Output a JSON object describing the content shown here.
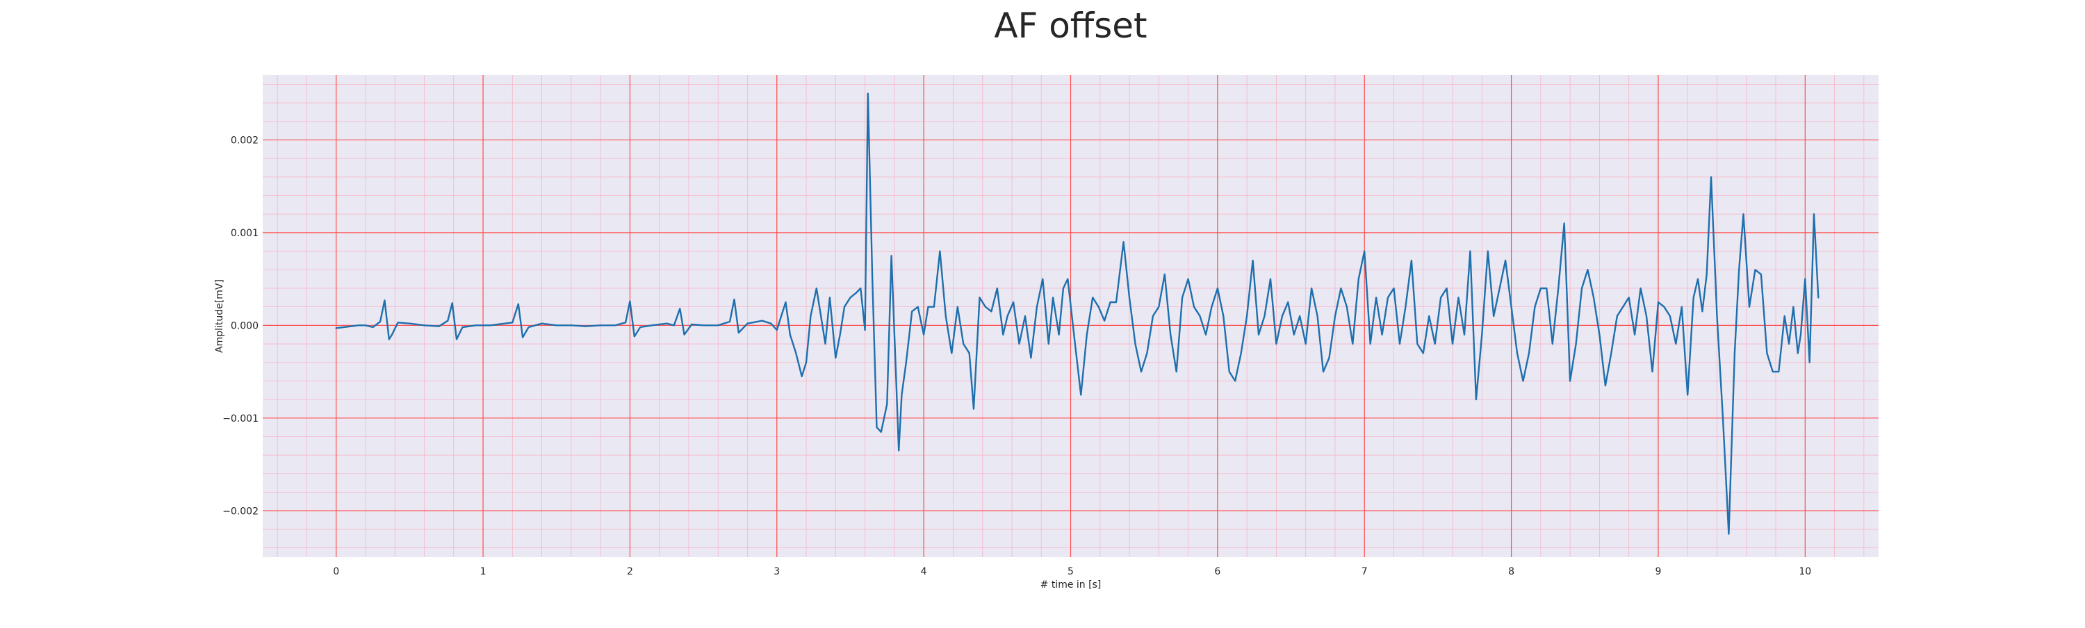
{
  "chart_data": {
    "type": "line",
    "title": "AF offset",
    "xlabel": "# time in [s]",
    "ylabel": "Amplitude[mV]",
    "xlim": [
      -0.5,
      10.5
    ],
    "ylim": [
      -0.0025,
      0.0027
    ],
    "x_ticks": [
      0,
      1,
      2,
      3,
      4,
      5,
      6,
      7,
      8,
      9,
      10
    ],
    "x_tick_labels": [
      "0",
      "1",
      "2",
      "3",
      "4",
      "5",
      "6",
      "7",
      "8",
      "9",
      "10"
    ],
    "y_ticks": [
      -0.002,
      -0.001,
      0.0,
      0.001,
      0.002
    ],
    "y_tick_labels": [
      "−0.002",
      "−0.001",
      "0.000",
      "0.001",
      "0.002"
    ],
    "grid": true,
    "grid_major_color": "#ff4d4d",
    "grid_minor_color": "#f7b6c8",
    "background_color": "#eae8f2",
    "series": [
      {
        "color": "#1f6fad",
        "points": [
          [
            0.0,
            -3e-05
          ],
          [
            0.05,
            -2e-05
          ],
          [
            0.1,
            -1e-05
          ],
          [
            0.15,
            0.0
          ],
          [
            0.2,
            0.0
          ],
          [
            0.25,
            -2e-05
          ],
          [
            0.3,
            4e-05
          ],
          [
            0.33,
            0.00027
          ],
          [
            0.36,
            -0.00015
          ],
          [
            0.38,
            -0.0001
          ],
          [
            0.42,
            3e-05
          ],
          [
            0.5,
            2e-05
          ],
          [
            0.6,
            0.0
          ],
          [
            0.7,
            -1e-05
          ],
          [
            0.76,
            5e-05
          ],
          [
            0.79,
            0.00024
          ],
          [
            0.82,
            -0.00015
          ],
          [
            0.86,
            -2e-05
          ],
          [
            0.95,
            0.0
          ],
          [
            1.05,
            0.0
          ],
          [
            1.1,
            1e-05
          ],
          [
            1.2,
            3e-05
          ],
          [
            1.24,
            0.00023
          ],
          [
            1.27,
            -0.00013
          ],
          [
            1.31,
            -2e-05
          ],
          [
            1.4,
            2e-05
          ],
          [
            1.5,
            0.0
          ],
          [
            1.6,
            0.0
          ],
          [
            1.7,
            -1e-05
          ],
          [
            1.8,
            0.0
          ],
          [
            1.9,
            0.0
          ],
          [
            1.97,
            3e-05
          ],
          [
            2.0,
            0.00026
          ],
          [
            2.03,
            -0.00012
          ],
          [
            2.07,
            -2e-05
          ],
          [
            2.15,
            0.0
          ],
          [
            2.25,
            2e-05
          ],
          [
            2.3,
            0.0
          ],
          [
            2.34,
            0.00018
          ],
          [
            2.37,
            -0.0001
          ],
          [
            2.42,
            1e-05
          ],
          [
            2.5,
            0.0
          ],
          [
            2.6,
            0.0
          ],
          [
            2.68,
            4e-05
          ],
          [
            2.71,
            0.00028
          ],
          [
            2.74,
            -8e-05
          ],
          [
            2.8,
            2e-05
          ],
          [
            2.9,
            5e-05
          ],
          [
            2.96,
            2e-05
          ],
          [
            3.0,
            -5e-05
          ],
          [
            3.03,
            0.0001
          ],
          [
            3.06,
            0.00025
          ],
          [
            3.09,
            -0.0001
          ],
          [
            3.13,
            -0.0003
          ],
          [
            3.17,
            -0.00055
          ],
          [
            3.2,
            -0.0004
          ],
          [
            3.23,
            0.0001
          ],
          [
            3.27,
            0.0004
          ],
          [
            3.3,
            0.0001
          ],
          [
            3.33,
            -0.0002
          ],
          [
            3.36,
            0.0003
          ],
          [
            3.4,
            -0.00035
          ],
          [
            3.43,
            -0.0001
          ],
          [
            3.46,
            0.0002
          ],
          [
            3.5,
            0.0003
          ],
          [
            3.54,
            0.00035
          ],
          [
            3.57,
            0.0004
          ],
          [
            3.6,
            -5e-05
          ],
          [
            3.62,
            0.0025
          ],
          [
            3.65,
            0.0005
          ],
          [
            3.68,
            -0.0011
          ],
          [
            3.71,
            -0.00115
          ],
          [
            3.75,
            -0.00085
          ],
          [
            3.78,
            0.00075
          ],
          [
            3.81,
            -0.0005
          ],
          [
            3.83,
            -0.00135
          ],
          [
            3.85,
            -0.00075
          ],
          [
            3.88,
            -0.0004
          ],
          [
            3.92,
            0.00015
          ],
          [
            3.96,
            0.0002
          ],
          [
            4.0,
            -0.0001
          ],
          [
            4.03,
            0.0002
          ],
          [
            4.07,
            0.0002
          ],
          [
            4.11,
            0.0008
          ],
          [
            4.15,
            0.0001
          ],
          [
            4.19,
            -0.0003
          ],
          [
            4.23,
            0.0002
          ],
          [
            4.27,
            -0.0002
          ],
          [
            4.31,
            -0.0003
          ],
          [
            4.34,
            -0.0009
          ],
          [
            4.38,
            0.0003
          ],
          [
            4.42,
            0.0002
          ],
          [
            4.46,
            0.00015
          ],
          [
            4.5,
            0.0004
          ],
          [
            4.54,
            -0.0001
          ],
          [
            4.57,
            0.0001
          ],
          [
            4.61,
            0.00025
          ],
          [
            4.65,
            -0.0002
          ],
          [
            4.69,
            0.0001
          ],
          [
            4.73,
            -0.00035
          ],
          [
            4.77,
            0.0002
          ],
          [
            4.81,
            0.0005
          ],
          [
            4.85,
            -0.0002
          ],
          [
            4.88,
            0.0003
          ],
          [
            4.92,
            -0.0001
          ],
          [
            4.95,
            0.0004
          ],
          [
            4.98,
            0.0005
          ],
          [
            5.03,
            -0.0002
          ],
          [
            5.07,
            -0.00075
          ],
          [
            5.11,
            -0.0001
          ],
          [
            5.15,
            0.0003
          ],
          [
            5.19,
            0.0002
          ],
          [
            5.23,
            5e-05
          ],
          [
            5.27,
            0.00025
          ],
          [
            5.31,
            0.00025
          ],
          [
            5.36,
            0.0009
          ],
          [
            5.4,
            0.0003
          ],
          [
            5.44,
            -0.0002
          ],
          [
            5.48,
            -0.0005
          ],
          [
            5.52,
            -0.0003
          ],
          [
            5.56,
            0.0001
          ],
          [
            5.6,
            0.0002
          ],
          [
            5.64,
            0.00055
          ],
          [
            5.68,
            -0.0001
          ],
          [
            5.72,
            -0.0005
          ],
          [
            5.76,
            0.0003
          ],
          [
            5.8,
            0.0005
          ],
          [
            5.84,
            0.0002
          ],
          [
            5.88,
            0.0001
          ],
          [
            5.92,
            -0.0001
          ],
          [
            5.96,
            0.0002
          ],
          [
            6.0,
            0.0004
          ],
          [
            6.04,
            0.0001
          ],
          [
            6.08,
            -0.0005
          ],
          [
            6.12,
            -0.0006
          ],
          [
            6.16,
            -0.0003
          ],
          [
            6.2,
            0.0001
          ],
          [
            6.24,
            0.0007
          ],
          [
            6.28,
            -0.0001
          ],
          [
            6.32,
            0.0001
          ],
          [
            6.36,
            0.0005
          ],
          [
            6.4,
            -0.0002
          ],
          [
            6.44,
            0.0001
          ],
          [
            6.48,
            0.00025
          ],
          [
            6.52,
            -0.0001
          ],
          [
            6.56,
            0.0001
          ],
          [
            6.6,
            -0.0002
          ],
          [
            6.64,
            0.0004
          ],
          [
            6.68,
            0.0001
          ],
          [
            6.72,
            -0.0005
          ],
          [
            6.76,
            -0.00035
          ],
          [
            6.8,
            0.0001
          ],
          [
            6.84,
            0.0004
          ],
          [
            6.88,
            0.0002
          ],
          [
            6.92,
            -0.0002
          ],
          [
            6.96,
            0.0005
          ],
          [
            7.0,
            0.0008
          ],
          [
            7.04,
            -0.0002
          ],
          [
            7.08,
            0.0003
          ],
          [
            7.12,
            -0.0001
          ],
          [
            7.16,
            0.0003
          ],
          [
            7.2,
            0.0004
          ],
          [
            7.24,
            -0.0002
          ],
          [
            7.28,
            0.0002
          ],
          [
            7.32,
            0.0007
          ],
          [
            7.36,
            -0.0002
          ],
          [
            7.4,
            -0.0003
          ],
          [
            7.44,
            0.0001
          ],
          [
            7.48,
            -0.0002
          ],
          [
            7.52,
            0.0003
          ],
          [
            7.56,
            0.0004
          ],
          [
            7.6,
            -0.0002
          ],
          [
            7.64,
            0.0003
          ],
          [
            7.68,
            -0.0001
          ],
          [
            7.72,
            0.0008
          ],
          [
            7.76,
            -0.0008
          ],
          [
            7.8,
            -0.0001
          ],
          [
            7.84,
            0.0008
          ],
          [
            7.88,
            0.0001
          ],
          [
            7.92,
            0.0004
          ],
          [
            7.96,
            0.0007
          ],
          [
            8.0,
            0.0002
          ],
          [
            8.04,
            -0.0003
          ],
          [
            8.08,
            -0.0006
          ],
          [
            8.12,
            -0.0003
          ],
          [
            8.16,
            0.0002
          ],
          [
            8.2,
            0.0004
          ],
          [
            8.24,
            0.0004
          ],
          [
            8.28,
            -0.0002
          ],
          [
            8.32,
            0.0004
          ],
          [
            8.36,
            0.0011
          ],
          [
            8.4,
            -0.0006
          ],
          [
            8.44,
            -0.0002
          ],
          [
            8.48,
            0.0004
          ],
          [
            8.52,
            0.0006
          ],
          [
            8.56,
            0.0003
          ],
          [
            8.6,
            -0.0001
          ],
          [
            8.64,
            -0.00065
          ],
          [
            8.68,
            -0.0003
          ],
          [
            8.72,
            0.0001
          ],
          [
            8.76,
            0.0002
          ],
          [
            8.8,
            0.0003
          ],
          [
            8.84,
            -0.0001
          ],
          [
            8.88,
            0.0004
          ],
          [
            8.92,
            0.0001
          ],
          [
            8.96,
            -0.0005
          ],
          [
            9.0,
            0.00025
          ],
          [
            9.04,
            0.0002
          ],
          [
            9.08,
            0.0001
          ],
          [
            9.12,
            -0.0002
          ],
          [
            9.16,
            0.0002
          ],
          [
            9.2,
            -0.00075
          ],
          [
            9.24,
            0.0003
          ],
          [
            9.27,
            0.0005
          ],
          [
            9.3,
            0.00015
          ],
          [
            9.33,
            0.00055
          ],
          [
            9.36,
            0.0016
          ],
          [
            9.4,
            0.0001
          ],
          [
            9.44,
            -0.001
          ],
          [
            9.48,
            -0.00225
          ],
          [
            9.52,
            -0.0003
          ],
          [
            9.55,
            0.0006
          ],
          [
            9.58,
            0.0012
          ],
          [
            9.62,
            0.0002
          ],
          [
            9.66,
            0.0006
          ],
          [
            9.7,
            0.00055
          ],
          [
            9.74,
            -0.0003
          ],
          [
            9.78,
            -0.0005
          ],
          [
            9.82,
            -0.0005
          ],
          [
            9.86,
            0.0001
          ],
          [
            9.89,
            -0.0002
          ],
          [
            9.92,
            0.0002
          ],
          [
            9.95,
            -0.0003
          ],
          [
            9.97,
            -0.0001
          ],
          [
            10.0,
            0.0005
          ],
          [
            10.03,
            -0.0004
          ],
          [
            10.06,
            0.0012
          ],
          [
            10.09,
            0.0003
          ]
        ]
      }
    ]
  }
}
